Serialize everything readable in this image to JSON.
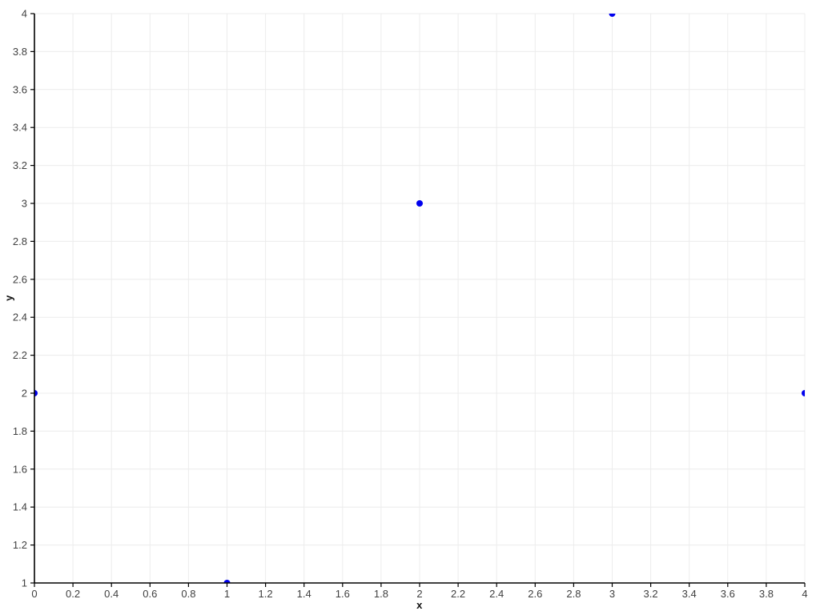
{
  "chart_data": {
    "type": "scatter",
    "title": "",
    "xlabel": "x",
    "ylabel": "y",
    "xlim": [
      0,
      4
    ],
    "ylim": [
      1,
      4
    ],
    "xtick_step": 0.2,
    "ytick_step": 0.2,
    "xticks": [
      0,
      0.2,
      0.4,
      0.6,
      0.8,
      1,
      1.2,
      1.4,
      1.6,
      1.8,
      2,
      2.2,
      2.4,
      2.6,
      2.8,
      3,
      3.2,
      3.4,
      3.6,
      3.8,
      4
    ],
    "yticks": [
      1,
      1.2,
      1.4,
      1.6,
      1.8,
      2,
      2.2,
      2.4,
      2.6,
      2.8,
      3,
      3.2,
      3.4,
      3.6,
      3.8,
      4
    ],
    "grid": true,
    "legend": "none",
    "points": [
      {
        "x": 0,
        "y": 2
      },
      {
        "x": 1,
        "y": 1
      },
      {
        "x": 2,
        "y": 3
      },
      {
        "x": 3,
        "y": 4
      },
      {
        "x": 4,
        "y": 2
      }
    ],
    "point_color": "#0000ee",
    "point_radius_px": 4,
    "grid_color": "#ececec",
    "axis_color": "#000000",
    "tick_label_color": "#404040",
    "background_color": "#ffffff"
  }
}
